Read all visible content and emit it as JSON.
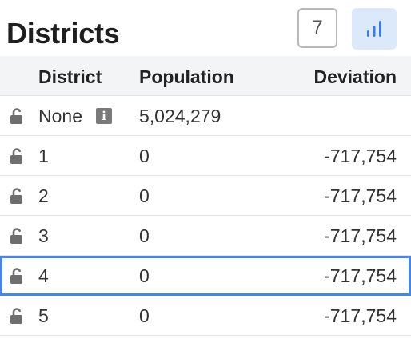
{
  "header": {
    "title": "Districts",
    "count_label": "7",
    "chart_icon": "bar-chart-icon",
    "accent_bg": "#dce9fb",
    "accent_fg": "#3b7ddd"
  },
  "table": {
    "columns": [
      "District",
      "Population",
      "Deviation"
    ],
    "rows": [
      {
        "name": "None",
        "population": "5,024,279",
        "deviation": "",
        "info": "i"
      },
      {
        "name": "1",
        "population": "0",
        "deviation": "-717,754"
      },
      {
        "name": "2",
        "population": "0",
        "deviation": "-717,754"
      },
      {
        "name": "3",
        "population": "0",
        "deviation": "-717,754"
      },
      {
        "name": "4",
        "population": "0",
        "deviation": "-717,754"
      },
      {
        "name": "5",
        "population": "0",
        "deviation": "-717,754"
      }
    ],
    "selected_row": "4"
  }
}
